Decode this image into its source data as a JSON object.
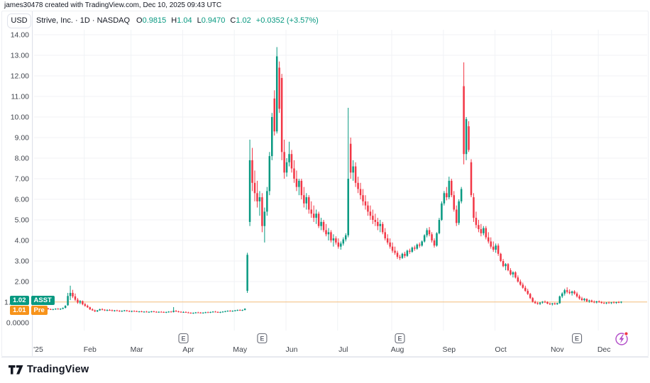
{
  "attribution": "james30478 created with TradingView.com, Dec 10, 2025 09:43 UTC",
  "header": {
    "currency_button": "USD",
    "symbol_title": "Strive, Inc. · 1D · NASDAQ",
    "ohlc": {
      "open_label": "O",
      "open_value": "0.9815",
      "high_label": "H",
      "high_value": "1.04",
      "low_label": "L",
      "low_value": "0.9470",
      "close_label": "C",
      "close_value": "1.02",
      "change": "+0.0352 (+3.57%)"
    }
  },
  "price_labels": {
    "last": {
      "value": "1.02",
      "tag": "ASST",
      "color": "#089981"
    },
    "pre": {
      "value": "1.01",
      "tag": "Pre",
      "color": "#f7931a"
    }
  },
  "footer": {
    "logo_text": "TradingView"
  },
  "icons": {
    "earnings_marker": "E",
    "bottom_right_button": "lightning-bolt-circle",
    "notification_dot_color": "#f23645"
  },
  "colors": {
    "up": "#089981",
    "down": "#f23645",
    "pre_market_line": "#f7931a",
    "grid": "#f0f2f6",
    "axis_border": "#e0e3eb",
    "axis_text": "#42464e",
    "title_text": "#131722",
    "lightning": "#b14bc8"
  },
  "chart_data": {
    "type": "candlestick",
    "title": "Strive, Inc. (ASST) · 1D · NASDAQ · USD",
    "xlabel": "",
    "ylabel": "USD",
    "ylim": [
      0,
      14.3
    ],
    "grid": true,
    "pre_market_price": 1.01,
    "last_price": 1.02,
    "y_ticks": [
      {
        "value": 14,
        "label": "14.00"
      },
      {
        "value": 13,
        "label": "13.00"
      },
      {
        "value": 12,
        "label": "12.00"
      },
      {
        "value": 11,
        "label": "11.00"
      },
      {
        "value": 10,
        "label": "10.00"
      },
      {
        "value": 9,
        "label": "9.00"
      },
      {
        "value": 8,
        "label": "8.00"
      },
      {
        "value": 7,
        "label": "7.00"
      },
      {
        "value": 6,
        "label": "6.00"
      },
      {
        "value": 5,
        "label": "5.00"
      },
      {
        "value": 4,
        "label": "4.00"
      },
      {
        "value": 3,
        "label": "3.00"
      },
      {
        "value": 2,
        "label": "2.00"
      },
      {
        "value": 1,
        "label": "1.00",
        "partially_hidden": true
      },
      {
        "value": 0,
        "label": "0.0000"
      }
    ],
    "months": [
      {
        "label": "'25",
        "start": 0
      },
      {
        "label": "Feb",
        "start": 21
      },
      {
        "label": "Mar",
        "start": 40
      },
      {
        "label": "Apr",
        "start": 61
      },
      {
        "label": "May",
        "start": 82
      },
      {
        "label": "Jun",
        "start": 103
      },
      {
        "label": "Jul",
        "start": 124
      },
      {
        "label": "Aug",
        "start": 146
      },
      {
        "label": "Sep",
        "start": 167
      },
      {
        "label": "Oct",
        "start": 188
      },
      {
        "label": "Nov",
        "start": 211
      },
      {
        "label": "Dec",
        "start": 230
      }
    ],
    "earnings_indices": [
      59,
      91,
      147,
      219
    ],
    "candles": [
      [
        0.7,
        0.74,
        0.66,
        0.68
      ],
      [
        0.68,
        0.71,
        0.64,
        0.66
      ],
      [
        0.66,
        0.7,
        0.63,
        0.68
      ],
      [
        0.68,
        0.72,
        0.65,
        0.7
      ],
      [
        0.7,
        0.72,
        0.64,
        0.66
      ],
      [
        0.66,
        0.69,
        0.62,
        0.64
      ],
      [
        0.64,
        0.68,
        0.61,
        0.66
      ],
      [
        0.66,
        0.7,
        0.63,
        0.68
      ],
      [
        0.68,
        0.71,
        0.64,
        0.66
      ],
      [
        0.66,
        0.7,
        0.62,
        0.68
      ],
      [
        0.68,
        0.74,
        0.65,
        0.72
      ],
      [
        0.72,
        0.85,
        0.7,
        0.82
      ],
      [
        0.85,
        1.45,
        0.82,
        1.3
      ],
      [
        1.3,
        1.8,
        1.1,
        1.45
      ],
      [
        1.45,
        1.6,
        1.2,
        1.28
      ],
      [
        1.28,
        1.42,
        1.05,
        1.12
      ],
      [
        1.12,
        1.2,
        0.92,
        0.98
      ],
      [
        0.98,
        1.1,
        0.9,
        1.05
      ],
      [
        1.05,
        1.08,
        0.85,
        0.9
      ],
      [
        0.9,
        0.96,
        0.78,
        0.82
      ],
      [
        0.82,
        0.88,
        0.72,
        0.75
      ],
      [
        0.75,
        0.78,
        0.62,
        0.65
      ],
      [
        0.65,
        0.7,
        0.58,
        0.6
      ],
      [
        0.6,
        0.64,
        0.52,
        0.55
      ],
      [
        0.55,
        0.62,
        0.52,
        0.6
      ],
      [
        0.6,
        0.68,
        0.58,
        0.66
      ],
      [
        0.66,
        0.7,
        0.6,
        0.63
      ],
      [
        0.63,
        0.66,
        0.57,
        0.6
      ],
      [
        0.6,
        0.65,
        0.56,
        0.62
      ],
      [
        0.62,
        0.66,
        0.58,
        0.61
      ],
      [
        0.61,
        0.64,
        0.55,
        0.58
      ],
      [
        0.58,
        0.62,
        0.54,
        0.6
      ],
      [
        0.6,
        0.63,
        0.56,
        0.58
      ],
      [
        0.58,
        0.61,
        0.53,
        0.56
      ],
      [
        0.56,
        0.6,
        0.52,
        0.58
      ],
      [
        0.58,
        0.62,
        0.55,
        0.6
      ],
      [
        0.6,
        0.62,
        0.54,
        0.57
      ],
      [
        0.57,
        0.6,
        0.52,
        0.55
      ],
      [
        0.55,
        0.59,
        0.51,
        0.57
      ],
      [
        0.57,
        0.6,
        0.53,
        0.56
      ],
      [
        0.56,
        0.59,
        0.52,
        0.54
      ],
      [
        0.54,
        0.57,
        0.5,
        0.55
      ],
      [
        0.55,
        0.58,
        0.51,
        0.53
      ],
      [
        0.53,
        0.56,
        0.49,
        0.54
      ],
      [
        0.54,
        0.57,
        0.5,
        0.52
      ],
      [
        0.52,
        0.55,
        0.48,
        0.53
      ],
      [
        0.53,
        0.57,
        0.5,
        0.55
      ],
      [
        0.55,
        0.58,
        0.51,
        0.53
      ],
      [
        0.53,
        0.56,
        0.49,
        0.51
      ],
      [
        0.51,
        0.55,
        0.48,
        0.53
      ],
      [
        0.53,
        0.56,
        0.5,
        0.52
      ],
      [
        0.52,
        0.55,
        0.48,
        0.5
      ],
      [
        0.5,
        0.54,
        0.47,
        0.52
      ],
      [
        0.52,
        0.56,
        0.49,
        0.54
      ],
      [
        0.54,
        0.57,
        0.5,
        0.52
      ],
      [
        0.52,
        0.76,
        0.5,
        0.58
      ],
      [
        0.58,
        0.61,
        0.52,
        0.55
      ],
      [
        0.55,
        0.58,
        0.5,
        0.53
      ],
      [
        0.53,
        0.56,
        0.49,
        0.51
      ],
      [
        0.51,
        0.55,
        0.48,
        0.52
      ],
      [
        0.52,
        0.55,
        0.48,
        0.5
      ],
      [
        0.5,
        0.53,
        0.46,
        0.48
      ],
      [
        0.48,
        0.51,
        0.44,
        0.46
      ],
      [
        0.46,
        0.5,
        0.43,
        0.48
      ],
      [
        0.48,
        0.52,
        0.45,
        0.5
      ],
      [
        0.5,
        0.53,
        0.47,
        0.49
      ],
      [
        0.49,
        0.52,
        0.45,
        0.47
      ],
      [
        0.47,
        0.51,
        0.44,
        0.49
      ],
      [
        0.49,
        0.53,
        0.46,
        0.51
      ],
      [
        0.51,
        0.54,
        0.48,
        0.5
      ],
      [
        0.5,
        0.54,
        0.47,
        0.52
      ],
      [
        0.52,
        0.56,
        0.49,
        0.54
      ],
      [
        0.54,
        0.57,
        0.5,
        0.52
      ],
      [
        0.52,
        0.55,
        0.48,
        0.5
      ],
      [
        0.5,
        0.54,
        0.47,
        0.52
      ],
      [
        0.52,
        0.56,
        0.49,
        0.54
      ],
      [
        0.54,
        0.58,
        0.51,
        0.56
      ],
      [
        0.56,
        0.6,
        0.53,
        0.58
      ],
      [
        0.58,
        0.61,
        0.54,
        0.56
      ],
      [
        0.56,
        0.6,
        0.53,
        0.58
      ],
      [
        0.58,
        0.62,
        0.55,
        0.6
      ],
      [
        0.6,
        0.64,
        0.57,
        0.62
      ],
      [
        0.62,
        0.65,
        0.58,
        0.6
      ],
      [
        0.6,
        0.64,
        0.57,
        0.62
      ],
      [
        0.62,
        0.7,
        0.6,
        0.68
      ],
      [
        1.55,
        3.4,
        1.45,
        3.3
      ],
      [
        4.9,
        8.9,
        4.7,
        7.9
      ],
      [
        7.9,
        8.5,
        6.4,
        6.8
      ],
      [
        6.8,
        7.4,
        5.9,
        6.3
      ],
      [
        6.3,
        6.9,
        5.6,
        5.9
      ],
      [
        5.9,
        6.4,
        5.2,
        6.1
      ],
      [
        6.1,
        6.3,
        4.4,
        4.7
      ],
      [
        4.7,
        5.6,
        3.9,
        5.4
      ],
      [
        5.4,
        6.6,
        5.2,
        6.4
      ],
      [
        6.4,
        8.3,
        6.2,
        8.1
      ],
      [
        8.1,
        10.2,
        7.9,
        10.0
      ],
      [
        10.9,
        11.3,
        9.1,
        9.3
      ],
      [
        9.3,
        13.4,
        9.2,
        12.95
      ],
      [
        12.4,
        12.7,
        10.2,
        10.4
      ],
      [
        11.9,
        12.1,
        7.9,
        8.3
      ],
      [
        8.3,
        8.9,
        7.0,
        7.3
      ],
      [
        7.3,
        8.0,
        7.1,
        7.8
      ],
      [
        7.8,
        8.8,
        7.6,
        8.2
      ],
      [
        8.2,
        8.4,
        7.3,
        7.5
      ],
      [
        7.5,
        7.9,
        6.8,
        7.0
      ],
      [
        7.0,
        7.4,
        6.4,
        6.6
      ],
      [
        6.6,
        7.0,
        6.2,
        6.9
      ],
      [
        6.9,
        7.0,
        6.0,
        6.2
      ],
      [
        6.2,
        6.6,
        5.6,
        5.8
      ],
      [
        5.8,
        6.3,
        5.5,
        6.1
      ],
      [
        6.1,
        6.2,
        5.3,
        5.5
      ],
      [
        5.5,
        5.9,
        5.1,
        5.3
      ],
      [
        5.3,
        5.7,
        4.9,
        5.1
      ],
      [
        5.1,
        5.5,
        4.8,
        5.3
      ],
      [
        5.3,
        5.4,
        4.6,
        4.7
      ],
      [
        4.7,
        5.1,
        4.5,
        4.9
      ],
      [
        4.9,
        5.0,
        4.4,
        4.5
      ],
      [
        4.5,
        4.8,
        4.2,
        4.3
      ],
      [
        4.3,
        4.6,
        4.0,
        4.4
      ],
      [
        4.4,
        4.5,
        3.9,
        4.0
      ],
      [
        4.0,
        4.3,
        3.7,
        4.1
      ],
      [
        4.1,
        4.2,
        3.8,
        3.9
      ],
      [
        3.9,
        4.1,
        3.6,
        3.7
      ],
      [
        3.7,
        3.95,
        3.55,
        3.85
      ],
      [
        3.85,
        4.15,
        3.75,
        4.05
      ],
      [
        4.05,
        4.35,
        3.95,
        4.25
      ],
      [
        4.25,
        10.45,
        4.15,
        7.0
      ],
      [
        8.7,
        9.0,
        7.0,
        7.3
      ],
      [
        7.3,
        7.9,
        6.9,
        7.6
      ],
      [
        7.6,
        7.8,
        6.6,
        6.8
      ],
      [
        6.8,
        7.1,
        6.3,
        6.5
      ],
      [
        6.5,
        6.8,
        6.0,
        6.2
      ],
      [
        6.2,
        6.5,
        5.7,
        5.9
      ],
      [
        5.9,
        6.2,
        5.5,
        5.7
      ],
      [
        5.7,
        5.9,
        5.2,
        5.4
      ],
      [
        5.4,
        5.7,
        5.0,
        5.2
      ],
      [
        5.2,
        5.5,
        4.8,
        5.0
      ],
      [
        5.0,
        5.3,
        4.7,
        4.9
      ],
      [
        4.9,
        5.1,
        4.5,
        4.7
      ],
      [
        4.7,
        5.0,
        4.4,
        4.8
      ],
      [
        4.8,
        4.9,
        4.3,
        4.4
      ],
      [
        4.4,
        4.6,
        4.0,
        4.1
      ],
      [
        4.1,
        4.3,
        3.8,
        3.9
      ],
      [
        3.9,
        4.1,
        3.6,
        3.7
      ],
      [
        3.7,
        3.9,
        3.4,
        3.5
      ],
      [
        3.5,
        3.7,
        3.3,
        3.4
      ],
      [
        3.4,
        3.5,
        3.1,
        3.2
      ],
      [
        3.2,
        3.3,
        3.05,
        3.15
      ],
      [
        3.15,
        3.4,
        3.1,
        3.35
      ],
      [
        3.35,
        3.45,
        3.15,
        3.25
      ],
      [
        3.25,
        3.55,
        3.2,
        3.5
      ],
      [
        3.5,
        3.6,
        3.35,
        3.45
      ],
      [
        3.45,
        3.7,
        3.4,
        3.65
      ],
      [
        3.65,
        3.75,
        3.5,
        3.6
      ],
      [
        3.6,
        3.85,
        3.55,
        3.8
      ],
      [
        3.8,
        3.9,
        3.65,
        3.75
      ],
      [
        3.75,
        4.0,
        3.7,
        3.95
      ],
      [
        3.95,
        4.3,
        3.9,
        4.25
      ],
      [
        4.25,
        4.6,
        4.15,
        4.5
      ],
      [
        4.5,
        4.65,
        4.2,
        4.3
      ],
      [
        4.3,
        4.4,
        3.9,
        4.0
      ],
      [
        4.0,
        4.1,
        3.65,
        3.75
      ],
      [
        3.75,
        4.4,
        3.7,
        4.35
      ],
      [
        4.35,
        5.1,
        4.3,
        5.0
      ],
      [
        5.0,
        5.9,
        4.95,
        5.8
      ],
      [
        5.8,
        6.4,
        5.7,
        6.3
      ],
      [
        6.3,
        6.6,
        5.95,
        6.1
      ],
      [
        6.1,
        7.1,
        6.0,
        6.9
      ],
      [
        6.9,
        7.0,
        6.1,
        6.2
      ],
      [
        6.2,
        6.4,
        5.4,
        5.5
      ],
      [
        5.5,
        5.7,
        4.7,
        4.85
      ],
      [
        4.85,
        6.0,
        4.75,
        5.9
      ],
      [
        5.9,
        6.6,
        5.8,
        6.5
      ],
      [
        11.5,
        12.66,
        7.7,
        8.2
      ],
      [
        8.2,
        10.0,
        7.9,
        9.9
      ],
      [
        9.55,
        9.8,
        8.3,
        8.4
      ],
      [
        7.8,
        7.95,
        6.1,
        6.2
      ],
      [
        6.1,
        6.3,
        4.9,
        5.1
      ],
      [
        5.1,
        5.4,
        4.6,
        4.75
      ],
      [
        4.75,
        5.0,
        4.4,
        4.55
      ],
      [
        4.55,
        4.8,
        4.2,
        4.35
      ],
      [
        4.35,
        4.7,
        4.25,
        4.6
      ],
      [
        4.6,
        4.7,
        4.05,
        4.15
      ],
      [
        4.15,
        4.4,
        3.85,
        3.95
      ],
      [
        3.95,
        4.15,
        3.6,
        3.7
      ],
      [
        3.7,
        3.95,
        3.45,
        3.55
      ],
      [
        3.55,
        3.85,
        3.4,
        3.75
      ],
      [
        3.75,
        3.85,
        3.25,
        3.35
      ],
      [
        3.35,
        3.4,
        2.95,
        3.0
      ],
      [
        3.0,
        3.1,
        2.7,
        2.75
      ],
      [
        2.75,
        2.9,
        2.55,
        2.85
      ],
      [
        2.85,
        2.9,
        2.5,
        2.55
      ],
      [
        2.55,
        2.65,
        2.3,
        2.35
      ],
      [
        2.35,
        2.5,
        2.2,
        2.45
      ],
      [
        2.45,
        2.5,
        2.15,
        2.2
      ],
      [
        2.2,
        2.3,
        1.95,
        2.0
      ],
      [
        2.0,
        2.1,
        1.8,
        1.85
      ],
      [
        1.85,
        1.95,
        1.65,
        1.7
      ],
      [
        1.7,
        1.8,
        1.5,
        1.55
      ],
      [
        1.55,
        1.65,
        1.35,
        1.4
      ],
      [
        1.4,
        1.45,
        1.15,
        1.2
      ],
      [
        1.2,
        1.25,
        0.98,
        1.02
      ],
      [
        1.02,
        1.08,
        0.92,
        0.95
      ],
      [
        0.95,
        1.02,
        0.88,
        0.92
      ],
      [
        0.92,
        1.0,
        0.86,
        0.98
      ],
      [
        0.98,
        1.05,
        0.93,
        1.02
      ],
      [
        1.02,
        1.08,
        0.96,
        1.0
      ],
      [
        1.0,
        1.04,
        0.9,
        0.93
      ],
      [
        0.93,
        0.98,
        0.86,
        0.9
      ],
      [
        0.9,
        0.96,
        0.84,
        0.94
      ],
      [
        0.94,
        0.98,
        0.87,
        0.9
      ],
      [
        0.9,
        0.97,
        0.87,
        0.95
      ],
      [
        0.95,
        1.32,
        0.92,
        1.28
      ],
      [
        1.28,
        1.48,
        1.2,
        1.42
      ],
      [
        1.42,
        1.65,
        1.32,
        1.58
      ],
      [
        1.58,
        1.72,
        1.42,
        1.5
      ],
      [
        1.5,
        1.62,
        1.38,
        1.44
      ],
      [
        1.44,
        1.56,
        1.32,
        1.52
      ],
      [
        1.52,
        1.58,
        1.36,
        1.42
      ],
      [
        1.42,
        1.5,
        1.22,
        1.28
      ],
      [
        1.28,
        1.36,
        1.12,
        1.18
      ],
      [
        1.18,
        1.26,
        1.06,
        1.1
      ],
      [
        1.1,
        1.2,
        1.04,
        1.16
      ],
      [
        1.16,
        1.18,
        1.0,
        1.04
      ],
      [
        1.04,
        1.12,
        0.97,
        1.08
      ],
      [
        1.08,
        1.12,
        0.99,
        1.02
      ],
      [
        1.02,
        1.08,
        0.95,
        0.99
      ],
      [
        0.99,
        1.06,
        0.94,
        1.04
      ],
      [
        1.04,
        1.08,
        0.97,
        1.0
      ],
      [
        1.0,
        1.05,
        0.93,
        0.96
      ],
      [
        0.96,
        1.02,
        0.92,
        0.95
      ],
      [
        0.95,
        1.0,
        0.9,
        0.98
      ],
      [
        0.98,
        1.03,
        0.93,
        0.96
      ],
      [
        0.96,
        1.01,
        0.91,
        0.99
      ],
      [
        0.99,
        1.04,
        0.94,
        0.97
      ],
      [
        0.97,
        1.02,
        0.92,
        1.0
      ],
      [
        1.0,
        1.05,
        0.95,
        0.98
      ],
      [
        0.9815,
        1.04,
        0.947,
        1.02
      ]
    ]
  }
}
